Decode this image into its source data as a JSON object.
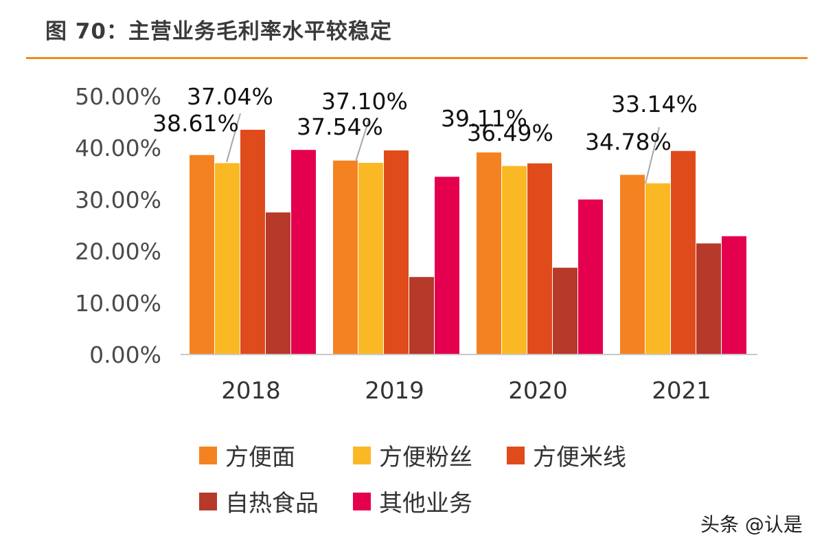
{
  "title": "图 70：主营业务毛利率水平较稳定",
  "watermark": "头条 @认是",
  "chart_data": {
    "type": "bar",
    "title": "图 70：主营业务毛利率水平较稳定",
    "xlabel": "",
    "ylabel": "",
    "ylim": [
      0,
      50
    ],
    "yticks": [
      "0.00%",
      "10.00%",
      "20.00%",
      "30.00%",
      "40.00%",
      "50.00%"
    ],
    "ytick_values": [
      0,
      10,
      20,
      30,
      40,
      50
    ],
    "categories": [
      "2018",
      "2019",
      "2020",
      "2021"
    ],
    "legend_position": "bottom",
    "series": [
      {
        "name": "方便面",
        "color": "#f58220",
        "values": [
          38.61,
          37.54,
          39.11,
          34.78
        ]
      },
      {
        "name": "方便粉丝",
        "color": "#fbb825",
        "values": [
          37.04,
          37.1,
          36.49,
          33.14
        ]
      },
      {
        "name": "方便米线",
        "color": "#e04b1c",
        "values": [
          43.5,
          39.5,
          37.0,
          39.4
        ]
      },
      {
        "name": "自热食品",
        "color": "#b7392a",
        "values": [
          27.5,
          15.0,
          16.8,
          21.5
        ]
      },
      {
        "name": "其他业务",
        "color": "#e4004f",
        "values": [
          39.6,
          34.4,
          30.0,
          22.9
        ]
      }
    ],
    "data_labels": [
      {
        "text": "38.61%",
        "category": "2018",
        "series": "方便面"
      },
      {
        "text": "37.04%",
        "category": "2018",
        "series": "方便粉丝"
      },
      {
        "text": "37.54%",
        "category": "2019",
        "series": "方便面"
      },
      {
        "text": "37.10%",
        "category": "2019",
        "series": "方便粉丝"
      },
      {
        "text": "39.11%",
        "category": "2020",
        "series": "方便面"
      },
      {
        "text": "36.49%",
        "category": "2020",
        "series": "方便粉丝"
      },
      {
        "text": "34.78%",
        "category": "2021",
        "series": "方便面"
      },
      {
        "text": "33.14%",
        "category": "2021",
        "series": "方便粉丝"
      }
    ]
  }
}
